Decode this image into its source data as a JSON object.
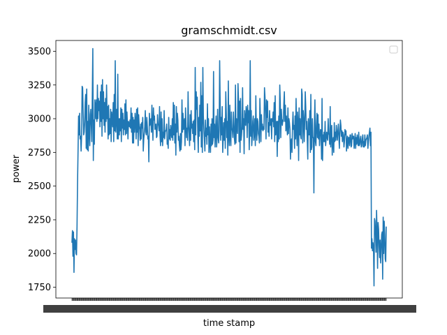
{
  "chart_data": {
    "type": "line",
    "title": "gramschmidt.csv",
    "xlabel": "time stamp",
    "ylabel": "power",
    "ylim": [
      1670,
      3580
    ],
    "y_ticks": [
      1750,
      2000,
      2250,
      2500,
      2750,
      3000,
      3250,
      3500
    ],
    "y_tick_labels": [
      "1750",
      "2000",
      "2250",
      "2500",
      "2750",
      "3000",
      "3250",
      "3500"
    ],
    "x_tick_labels_note": "x tick labels densely overlapped and illegible",
    "legend": {
      "placement": "top-right",
      "entries": []
    },
    "grid": false,
    "series": [
      {
        "color": "#1f77b4",
        "values": [
          2080,
          2170,
          1980,
          2160,
          1860,
          2110,
          2030,
          2100,
          2000,
          1990,
          2200,
          2520,
          2760,
          3020,
          2880,
          3040,
          2850,
          2870,
          2760,
          2880,
          3240,
          3230,
          3050,
          2880,
          2900,
          2970,
          3120,
          3180,
          2780,
          3220,
          2770,
          2980,
          2760,
          3100,
          2900,
          2800,
          3030,
          3070,
          2950,
          2830,
          3180,
          3520,
          2690,
          2990,
          2810,
          3140,
          3100,
          3000,
          3140,
          2980,
          3250,
          3000,
          3150,
          3060,
          3130,
          2940,
          3200,
          2980,
          3250,
          2870,
          3290,
          3000,
          3200,
          2950,
          3120,
          2900,
          3150,
          2980,
          3250,
          3000,
          3090,
          2850,
          3100,
          2880,
          3000,
          2890,
          3070,
          2830,
          3050,
          3000,
          2940,
          3120,
          2830,
          3180,
          2910,
          3430,
          2900,
          3020,
          3070,
          2850,
          3330,
          2850,
          3000,
          2880,
          3000,
          2910,
          3080,
          2830,
          3070,
          2930,
          3040,
          2880,
          2990,
          2920,
          3110,
          2880,
          3140,
          2890,
          3050,
          2960,
          2850,
          2980,
          2960,
          2940,
          2990,
          2930,
          3080,
          2900,
          3040,
          2820,
          3010,
          2820,
          2990,
          2900,
          3040,
          2980,
          2850,
          3070,
          2900,
          3080,
          2800,
          3030,
          2950,
          2920,
          2840,
          2960,
          2850,
          2970,
          2930,
          3010,
          2760,
          2850,
          2890,
          2940,
          3060,
          2900,
          2880,
          3010,
          2940,
          2850,
          2870,
          2680,
          3040,
          2950,
          2980,
          3000,
          2900,
          3100,
          2960,
          2840,
          3080,
          2990,
          3020,
          2920,
          2950,
          2960,
          2860,
          2870,
          3030,
          2960,
          2950,
          2910,
          3090,
          2870,
          2800,
          3050,
          2830,
          3000,
          2800,
          2900,
          2860,
          3060,
          2850,
          2900,
          2910,
          2920,
          2960,
          2810,
          2840,
          2780,
          3010,
          2850,
          2920,
          2840,
          2950,
          2890,
          2860,
          3000,
          2840,
          3120,
          2880,
          3100,
          2820,
          2960,
          2730,
          3090,
          2900,
          3040,
          2990,
          2840,
          2870,
          2800,
          2760,
          2890,
          2770,
          2830,
          3140,
          2900,
          3040,
          2920,
          2970,
          3000,
          2800,
          3080,
          2950,
          2860,
          2930,
          2840,
          3200,
          2950,
          2890,
          2800,
          3030,
          2840,
          3060,
          2930,
          2960,
          2890,
          2980,
          2830,
          2990,
          2770,
          3380,
          2880,
          3200,
          3070,
          3160,
          2900,
          2750,
          3010,
          2870,
          3100,
          2910,
          3270,
          2790,
          3170,
          2750,
          3380,
          3020,
          2920,
          2850,
          2760,
          2990,
          2870,
          2930,
          2810,
          3110,
          2880,
          3000,
          2750,
          2940,
          2820,
          2750,
          2960,
          2800,
          3000,
          2810,
          2840,
          3350,
          2860,
          2960,
          2790,
          2920,
          3020,
          2790,
          2860,
          3070,
          2870,
          2820,
          2910,
          3430,
          3110,
          2840,
          3010,
          2880,
          3090,
          2750,
          2860,
          2970,
          2840,
          3000,
          2780,
          3200,
          3040,
          2860,
          2980,
          2730,
          3280,
          2870,
          2800,
          3100,
          2870,
          2800,
          3050,
          2930,
          2910,
          2860,
          3050,
          2950,
          2850,
          2810,
          3250,
          2820,
          3000,
          2940,
          2890,
          3260,
          3140,
          2830,
          3130,
          2750,
          3150,
          2840,
          2880,
          2940,
          3230,
          2920,
          3000,
          2740,
          3060,
          2990,
          2950,
          3090,
          3060,
          2860,
          3100,
          2970,
          3060,
          2770,
          2920,
          3430,
          2870,
          3060,
          2800,
          2860,
          2980,
          3020,
          2840,
          2890,
          3000,
          2800,
          3170,
          2910,
          2840,
          3000,
          2980,
          2890,
          2870,
          2820,
          3150,
          3000,
          2830,
          3030,
          2920,
          2960,
          2910,
          2940,
          2920,
          3230,
          3160,
          3030,
          2850,
          3140,
          3010,
          3130,
          2900,
          2970,
          2870,
          3060,
          2950,
          2960,
          3000,
          2850,
          3000,
          2980,
          3050,
          2940,
          3120,
          2830,
          3170,
          2880,
          2960,
          2980,
          2720,
          2980,
          2830,
          3020,
          2850,
          3250,
          3120,
          2860,
          3070,
          3000,
          2950,
          2990,
          2980,
          3110,
          3200,
          2980,
          3100,
          2910,
          3020,
          2940,
          2880,
          3080,
          2890,
          3000,
          2970,
          2920,
          2700,
          2830,
          2850,
          2750,
          2950,
          3050,
          2920,
          2950,
          2780,
          3020,
          2850,
          3150,
          2910,
          2800,
          3050,
          2960,
          2690,
          3080,
          2880,
          3000,
          2870,
          2850,
          3220,
          3180,
          2820,
          3060,
          3000,
          2830,
          2980,
          3200,
          3090,
          2920,
          2980,
          2840,
          2700,
          3000,
          2880,
          2880,
          3060,
          2750,
          3180,
          2770,
          2790,
          3000,
          2860,
          2860,
          2450,
          2960,
          3140,
          2830,
          2800,
          2950,
          3040,
          2860,
          3030,
          2850,
          2960,
          2800,
          2880,
          2920,
          2900,
          2700,
          3150,
          2690,
          2880,
          2830,
          2900,
          2830,
          2980,
          2800,
          2850,
          2900,
          2860,
          2840,
          3000,
          2890,
          2880,
          2810,
          3090,
          2790,
          2910,
          2950,
          2730,
          2830,
          2860,
          2750,
          2970,
          2830,
          2900,
          2840,
          2950,
          2890,
          2840,
          2910,
          2960,
          2870,
          2780,
          2900,
          2990,
          2950,
          2870,
          2910,
          2830,
          2900,
          2880,
          2790,
          2830,
          2920,
          2880,
          2910,
          2760,
          2820,
          2870,
          2780,
          2860,
          2860,
          2800,
          2880,
          2880,
          2790,
          2800,
          2890,
          2850,
          2870,
          2870,
          2780,
          2830,
          2890,
          2780,
          2860,
          2810,
          2880,
          2830,
          2800,
          2900,
          2800,
          2810,
          2850,
          2870,
          2790,
          2800,
          2850,
          2880,
          2790,
          2830,
          2790,
          2880,
          2800,
          2840,
          2850,
          2860,
          2880,
          2780,
          2830,
          2870,
          2900,
          2930,
          2800,
          2900,
          2040,
          2110,
          2020,
          2080,
          2040,
          1760,
          2260,
          2240,
          2140,
          2010,
          2320,
          2160,
          1890,
          2230,
          2180,
          2050,
          1970,
          2100,
          1930,
          2030,
          2140,
          2160,
          1810,
          2270,
          2000,
          2240,
          2140,
          1960,
          1940,
          2200
        ]
      }
    ]
  }
}
